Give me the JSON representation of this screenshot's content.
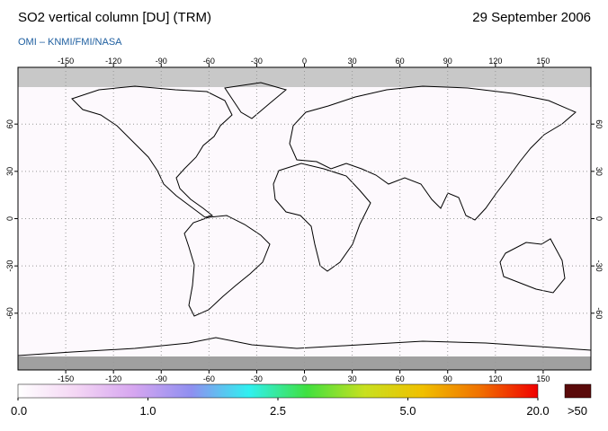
{
  "header": {
    "title": "SO2 vertical column [DU] (TRM)",
    "date": "29 September 2006",
    "subtitle": "OMI  –  KNMI/FMI/NASA"
  },
  "map": {
    "lonlim": [
      -180,
      180
    ],
    "latlim": [
      -96,
      96
    ],
    "lonticks": [
      -150,
      -120,
      -90,
      -60,
      -30,
      0,
      30,
      60,
      90,
      120,
      150
    ],
    "latticks": [
      60,
      30,
      0,
      -30,
      -60
    ],
    "grid": true
  },
  "colorbar": {
    "colors": [
      "#ffffff",
      "#f4d6f4",
      "#d6a6f0",
      "#8f8ff0",
      "#30f0f0",
      "#40e040",
      "#c8e020",
      "#f0c000",
      "#f07000",
      "#f00000"
    ],
    "ticks": [
      {
        "value": 0,
        "label": "0.0"
      },
      {
        "value": 1,
        "label": "1.0"
      },
      {
        "value": 2.5,
        "label": "2.5"
      },
      {
        "value": 5,
        "label": "5.0"
      },
      {
        "value": 20,
        "label": "20.0"
      }
    ],
    "overflow": {
      "label": ">50",
      "color": "#5a0a0a"
    }
  }
}
